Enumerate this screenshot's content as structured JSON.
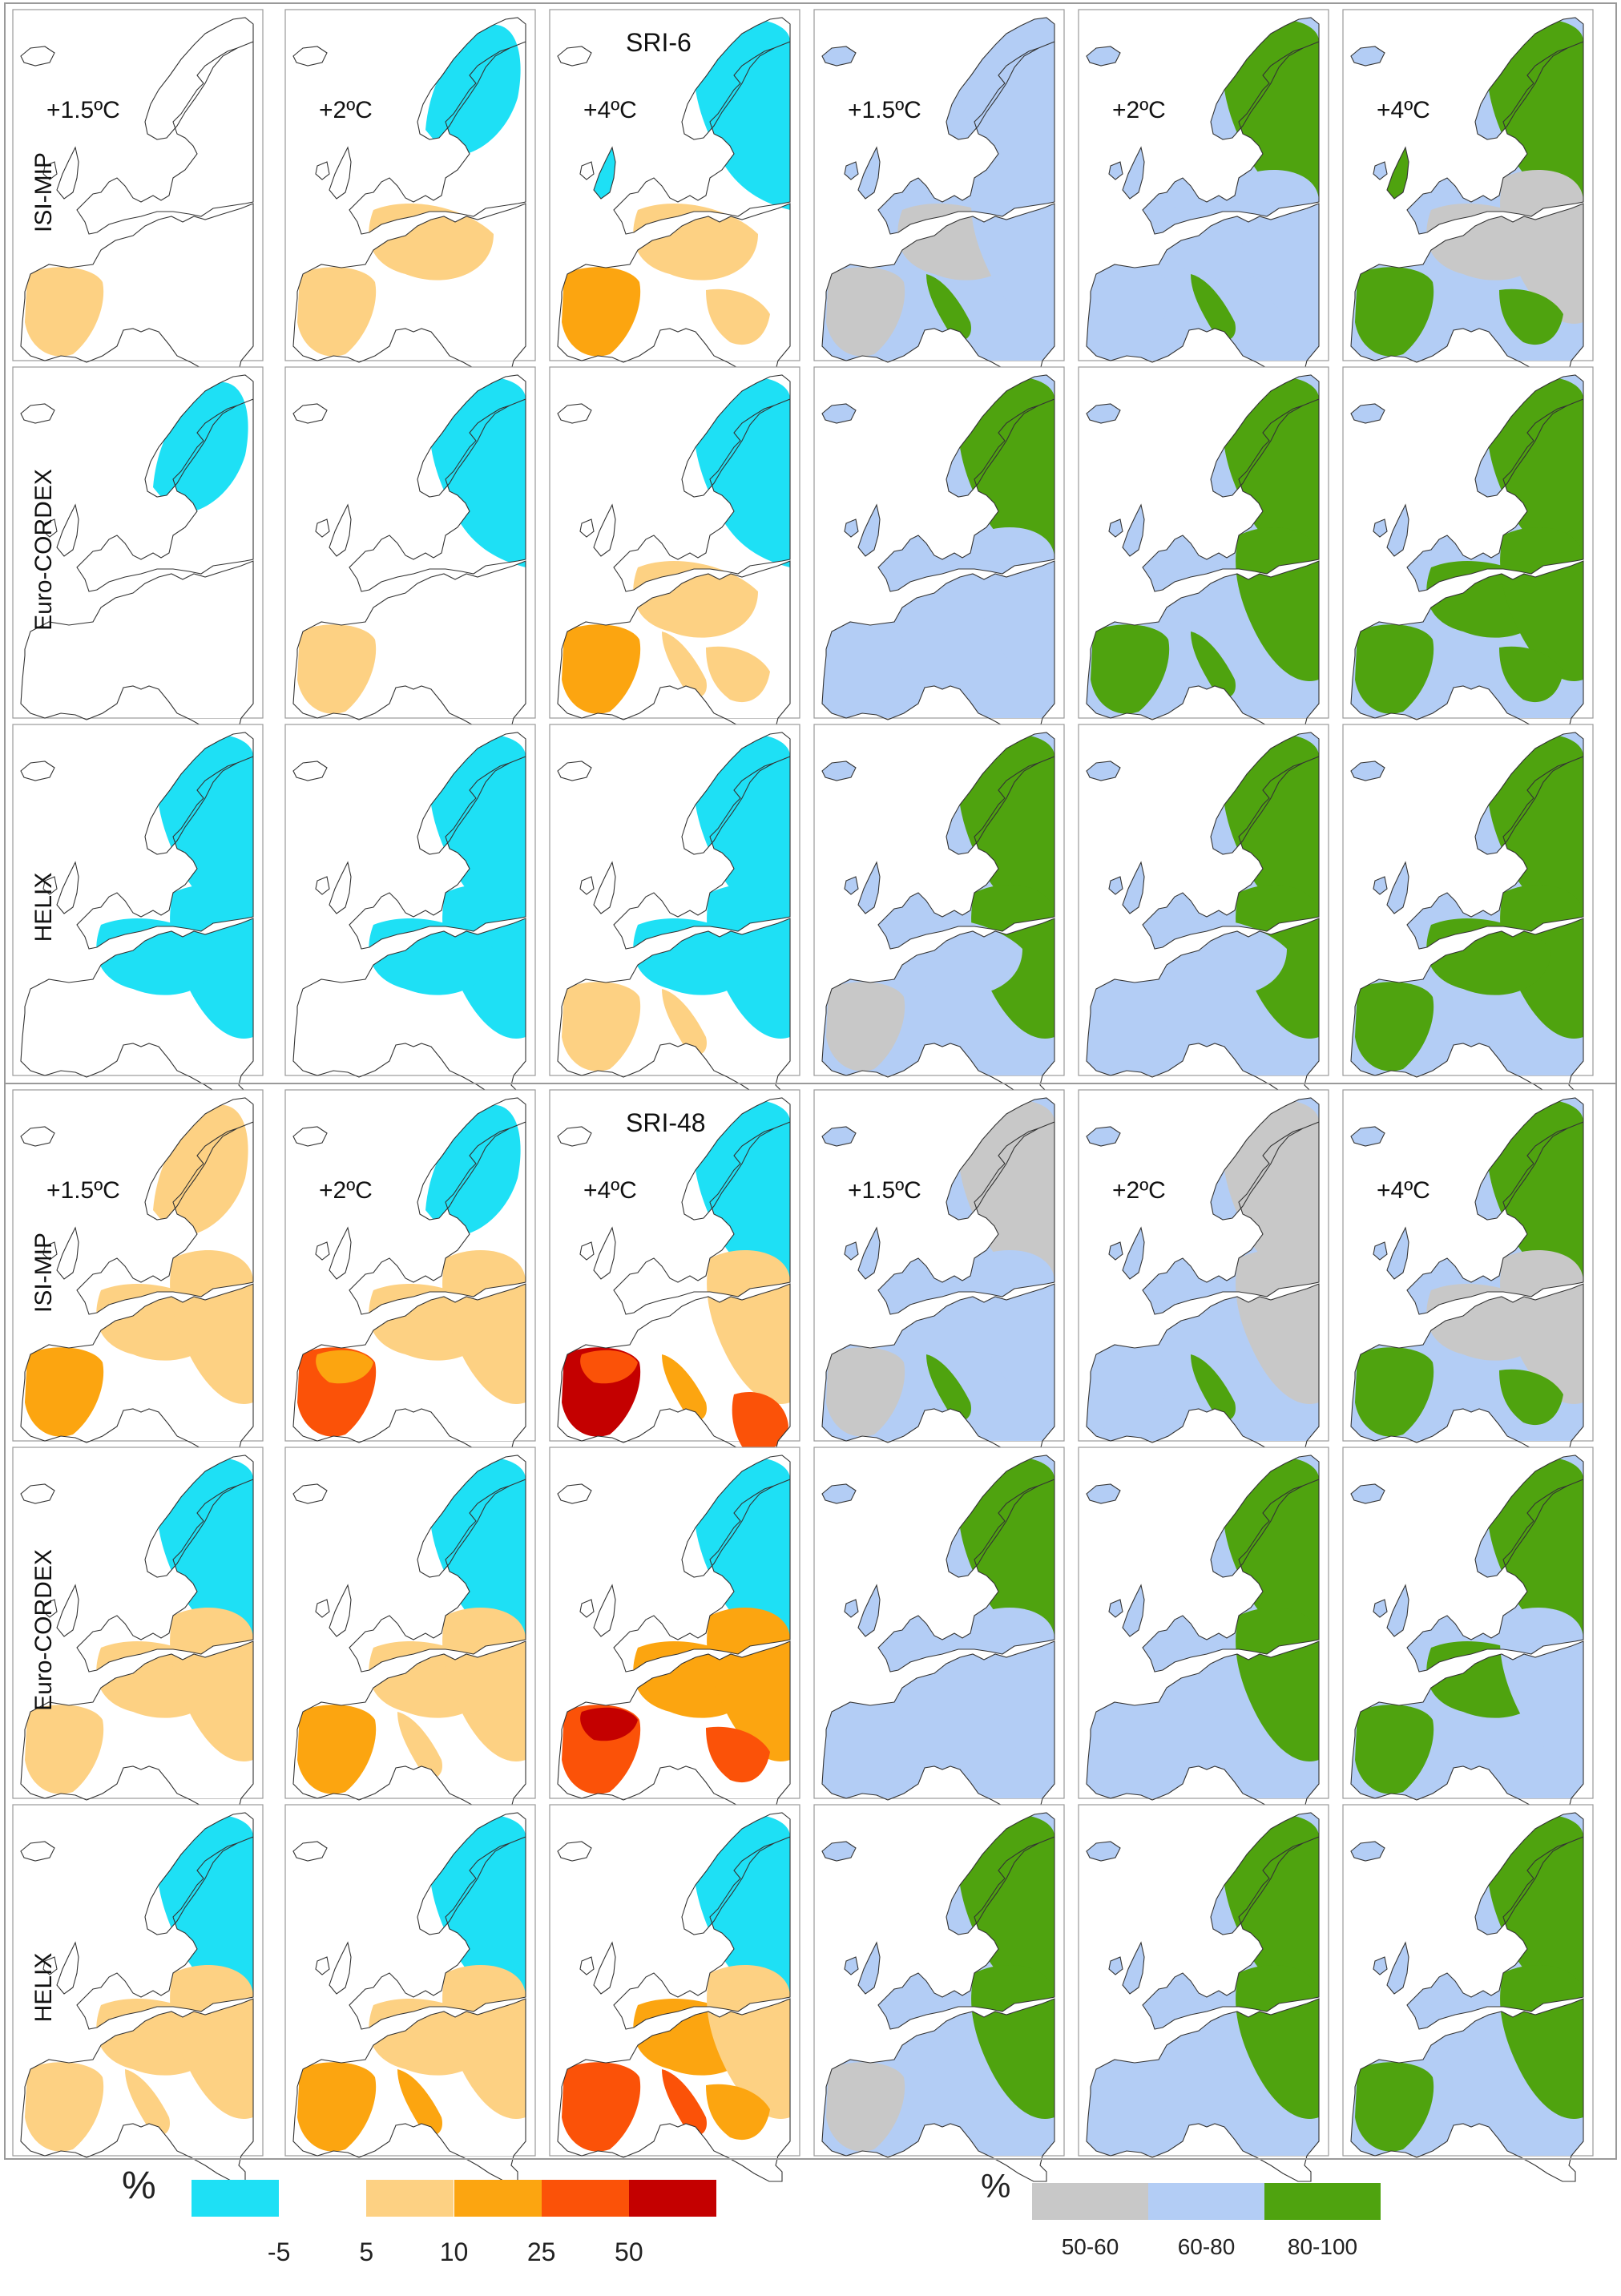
{
  "blocks": [
    {
      "title": "SRI-6",
      "rows": [
        "ISI-MIP",
        "Euro-CORDEX",
        "HELIX"
      ]
    },
    {
      "title": "SRI-48",
      "rows": [
        "ISI-MIP",
        "Euro-CORDEX",
        "HELIX"
      ]
    }
  ],
  "warming_levels": [
    "+1.5ºC",
    "+2ºC",
    "+4ºC",
    "+1.5ºC",
    "+2ºC",
    "+4ºC"
  ],
  "map_colors": {
    "land": "#ffffff",
    "outline": "#333333",
    "panel_border": "#9a9a9a"
  },
  "legend_change": {
    "unit": "%",
    "colors": [
      "#1ee0f5",
      "#ffffff",
      "#fdd183",
      "#fca510",
      "#fb5208",
      "#c40000"
    ],
    "ticks": [
      "-5",
      "5",
      "10",
      "25",
      "50"
    ]
  },
  "legend_agreement": {
    "unit": "%",
    "colors": [
      "#c8c8c8",
      "#b3cdf5",
      "#4fa30f"
    ],
    "labels": [
      "50-60",
      "60-80",
      "80-100"
    ]
  }
}
